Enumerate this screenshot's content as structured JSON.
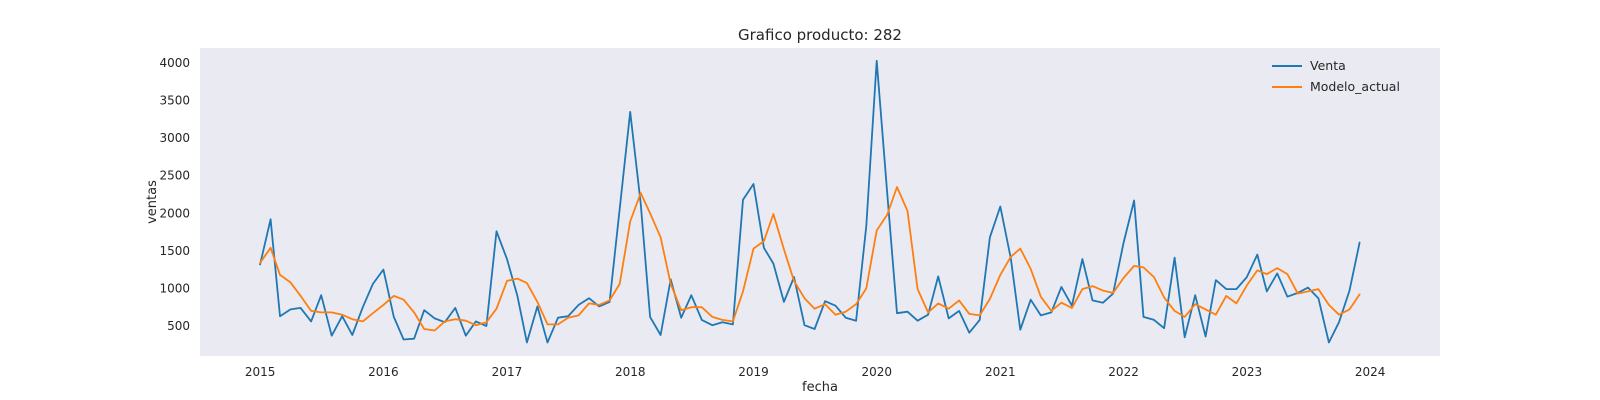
{
  "chart_data": {
    "type": "line",
    "title": "Grafico producto: 282",
    "xlabel": "fecha",
    "ylabel": "ventas",
    "xlim": [
      "2014-07-07",
      "2024-07-26"
    ],
    "ylim": [
      100,
      4200
    ],
    "x_ticks": [
      "2015",
      "2016",
      "2017",
      "2018",
      "2019",
      "2020",
      "2021",
      "2022",
      "2023",
      "2024"
    ],
    "y_ticks": [
      "500",
      "1000",
      "1500",
      "2000",
      "2500",
      "3000",
      "3500",
      "4000"
    ],
    "y_tick_values": [
      500,
      1000,
      1500,
      2000,
      2500,
      3000,
      3500,
      4000
    ],
    "grid": false,
    "legend_position": "top-right",
    "start_month": "2015-01",
    "series": [
      {
        "name": "Venta",
        "color": "#1f77b4",
        "values": [
          1320,
          1920,
          630,
          720,
          740,
          560,
          910,
          370,
          630,
          380,
          750,
          1060,
          1250,
          620,
          320,
          330,
          710,
          600,
          550,
          740,
          370,
          560,
          500,
          1760,
          1390,
          900,
          280,
          760,
          280,
          610,
          630,
          780,
          870,
          760,
          820,
          2060,
          3350,
          2130,
          620,
          380,
          1120,
          610,
          910,
          580,
          510,
          550,
          520,
          2180,
          2390,
          1540,
          1330,
          820,
          1150,
          510,
          460,
          830,
          770,
          610,
          570,
          1830,
          4030,
          2270,
          670,
          690,
          570,
          650,
          1160,
          600,
          700,
          410,
          580,
          1680,
          2090,
          1400,
          450,
          850,
          640,
          680,
          1020,
          770,
          1390,
          840,
          810,
          930,
          1610,
          2170,
          620,
          580,
          470,
          1410,
          350,
          910,
          360,
          1110,
          990,
          990,
          1150,
          1450,
          960,
          1200,
          890,
          940,
          1010,
          870,
          280,
          550,
          970,
          1610
        ]
      },
      {
        "name": "Modelo_actual",
        "color": "#ff7f0e",
        "values": [
          1340,
          1540,
          1180,
          1080,
          900,
          700,
          680,
          680,
          650,
          590,
          560,
          670,
          780,
          900,
          850,
          680,
          460,
          440,
          560,
          590,
          570,
          510,
          550,
          730,
          1100,
          1130,
          1070,
          820,
          520,
          520,
          610,
          640,
          800,
          780,
          840,
          1060,
          1890,
          2270,
          2000,
          1680,
          1060,
          710,
          750,
          750,
          620,
          580,
          560,
          960,
          1530,
          1630,
          1990,
          1520,
          1100,
          870,
          730,
          790,
          650,
          690,
          790,
          1000,
          1770,
          1980,
          2350,
          2030,
          990,
          680,
          800,
          730,
          840,
          660,
          640,
          860,
          1180,
          1420,
          1530,
          1260,
          890,
          700,
          810,
          740,
          990,
          1030,
          970,
          940,
          1140,
          1300,
          1280,
          1150,
          880,
          700,
          620,
          790,
          720,
          650,
          900,
          800,
          1040,
          1240,
          1190,
          1270,
          1190,
          930,
          960,
          990,
          780,
          650,
          720,
          920
        ]
      }
    ]
  }
}
